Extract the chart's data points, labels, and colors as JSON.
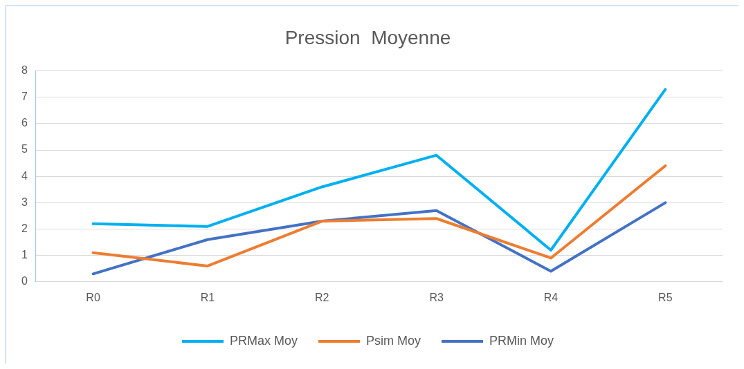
{
  "chart_data": {
    "type": "line",
    "title": "Pression  Moyenne",
    "categories": [
      "R0",
      "R1",
      "R2",
      "R3",
      "R4",
      "R5"
    ],
    "series": [
      {
        "name": "PRMax Moy",
        "color": "#00b0f0",
        "values": [
          2.2,
          2.1,
          3.6,
          4.8,
          1.2,
          7.3
        ]
      },
      {
        "name": "Psim Moy",
        "color": "#ed7d31",
        "values": [
          1.1,
          0.6,
          2.3,
          2.4,
          0.9,
          4.4
        ]
      },
      {
        "name": "PRMin Moy",
        "color": "#4472c4",
        "values": [
          0.3,
          1.6,
          2.3,
          2.7,
          0.4,
          3.0
        ]
      }
    ],
    "ylim": [
      0,
      8
    ],
    "yticks": [
      0,
      1,
      2,
      3,
      4,
      5,
      6,
      7,
      8
    ],
    "grid": "y",
    "legend": "bottom",
    "marker": "none",
    "line_style": "solid"
  }
}
